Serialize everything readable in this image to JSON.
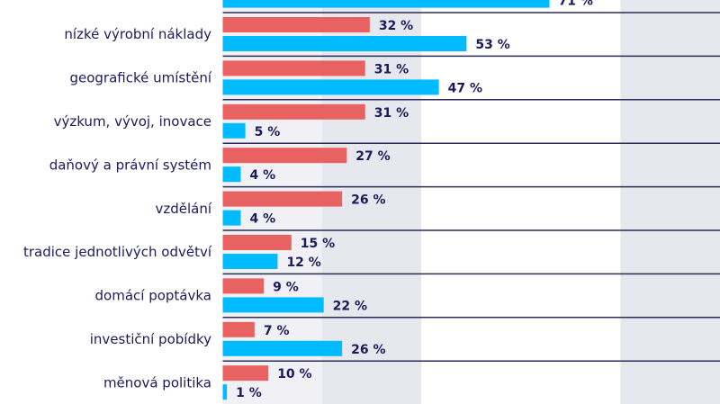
{
  "chart_data": {
    "type": "bar",
    "orientation": "horizontal",
    "categories": [
      "",
      "nízké výrobní náklady",
      "geografické umístění",
      "výzkum, vývoj, inovace",
      "daňový a právní systém",
      "vzdělání",
      "tradice jednotlivých odvětví",
      "domácí poptávka",
      "investiční pobídky",
      "měnová politika"
    ],
    "series": [
      {
        "values": [
          null,
          32,
          31,
          31,
          27,
          26,
          15,
          9,
          7,
          10
        ],
        "color": "#e86262"
      },
      {
        "values": [
          71,
          53,
          47,
          5,
          4,
          4,
          12,
          22,
          26,
          1
        ],
        "color": "#00bbff"
      }
    ],
    "value_suffix": " %",
    "xlim": [
      0,
      108
    ],
    "grid": "alternating vertical bands",
    "legend": "none",
    "colors": {
      "text": "#1b1b5c",
      "separator": "#2b2b55",
      "band": "#e9e9ef"
    }
  }
}
